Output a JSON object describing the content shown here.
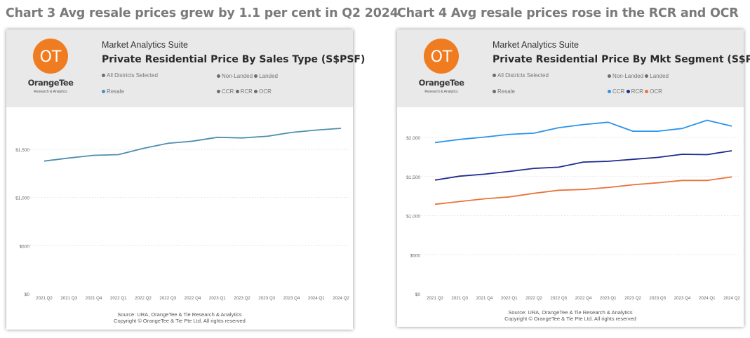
{
  "headings": {
    "left": "Chart 3 Avg resale prices grew by 1.1 per cent in Q2 2024",
    "right": "Chart 4 Avg resale prices rose in the RCR and OCR"
  },
  "branding": {
    "logo_initials": "OT",
    "logo_name": "OrangeTee",
    "logo_sub": "Research & Analytics",
    "suite": "Market Analytics Suite"
  },
  "filters": {
    "districts": "All Districts Selected",
    "sale_type": "Resale",
    "non_landed": "Non-Landed",
    "landed": "Landed",
    "ccr": "CCR",
    "rcr": "RCR",
    "ocr": "OCR"
  },
  "source": {
    "line1": "Source: URA, OrangeTee & Tie Research & Analytics",
    "line2": "Copyright © OrangeTee & Tie Pte Ltd. All rights reserved"
  },
  "colors": {
    "logo": "#f07c22",
    "filter_grey": "#6d6d6d",
    "resale_filter": "#4a8fc0",
    "ccr": "#2a93eb",
    "rcr": "#1f2b8e",
    "ocr": "#e8743b"
  },
  "chart_data": [
    {
      "type": "line",
      "title": "Private Residential Price By Sales Type (S$PSF)",
      "categories": [
        "2021 Q2",
        "2021 Q3",
        "2021 Q4",
        "2022 Q1",
        "2022 Q2",
        "2022 Q3",
        "2022 Q4",
        "2023 Q1",
        "2023 Q2",
        "2023 Q3",
        "2023 Q4",
        "2024 Q1",
        "2024 Q2"
      ],
      "series": [
        {
          "name": "",
          "color": "#4d8fae",
          "values": [
            1378,
            1410,
            1438,
            1445,
            1510,
            1562,
            1585,
            1625,
            1618,
            1635,
            1675,
            1700,
            1718
          ]
        }
      ],
      "ylim": [
        0,
        1900
      ],
      "yticks": [
        0,
        500,
        1000,
        1500
      ],
      "ytick_labels": [
        "$0",
        "$500",
        "$1,000",
        "$1,500"
      ],
      "grid": true,
      "xlabel": "",
      "ylabel": ""
    },
    {
      "type": "line",
      "title": "Private Residential Price By Mkt Segment (S$PSF)",
      "categories": [
        "2021 Q2",
        "2021 Q3",
        "2021 Q4",
        "2022 Q1",
        "2022 Q2",
        "2022 Q3",
        "2022 Q4",
        "2023 Q1",
        "2023 Q2",
        "2023 Q3",
        "2023 Q4",
        "2024 Q1",
        "2024 Q2"
      ],
      "series": [
        {
          "name": "CCR",
          "color": "#2a93eb",
          "values": [
            1935,
            1975,
            2005,
            2040,
            2055,
            2125,
            2165,
            2195,
            2080,
            2080,
            2115,
            2220,
            2145
          ]
        },
        {
          "name": "RCR",
          "color": "#1f2b8e",
          "values": [
            1455,
            1505,
            1530,
            1565,
            1605,
            1620,
            1685,
            1695,
            1720,
            1745,
            1785,
            1780,
            1830
          ]
        },
        {
          "name": "OCR",
          "color": "#e8743b",
          "values": [
            1145,
            1180,
            1215,
            1240,
            1285,
            1325,
            1335,
            1360,
            1395,
            1420,
            1450,
            1450,
            1495
          ]
        }
      ],
      "ylim": [
        0,
        2350
      ],
      "yticks": [
        0,
        500,
        1000,
        1500,
        2000
      ],
      "ytick_labels": [
        "$0",
        "$500",
        "$1,000",
        "$1,500",
        "$2,000"
      ],
      "grid": true,
      "xlabel": "",
      "ylabel": ""
    }
  ]
}
